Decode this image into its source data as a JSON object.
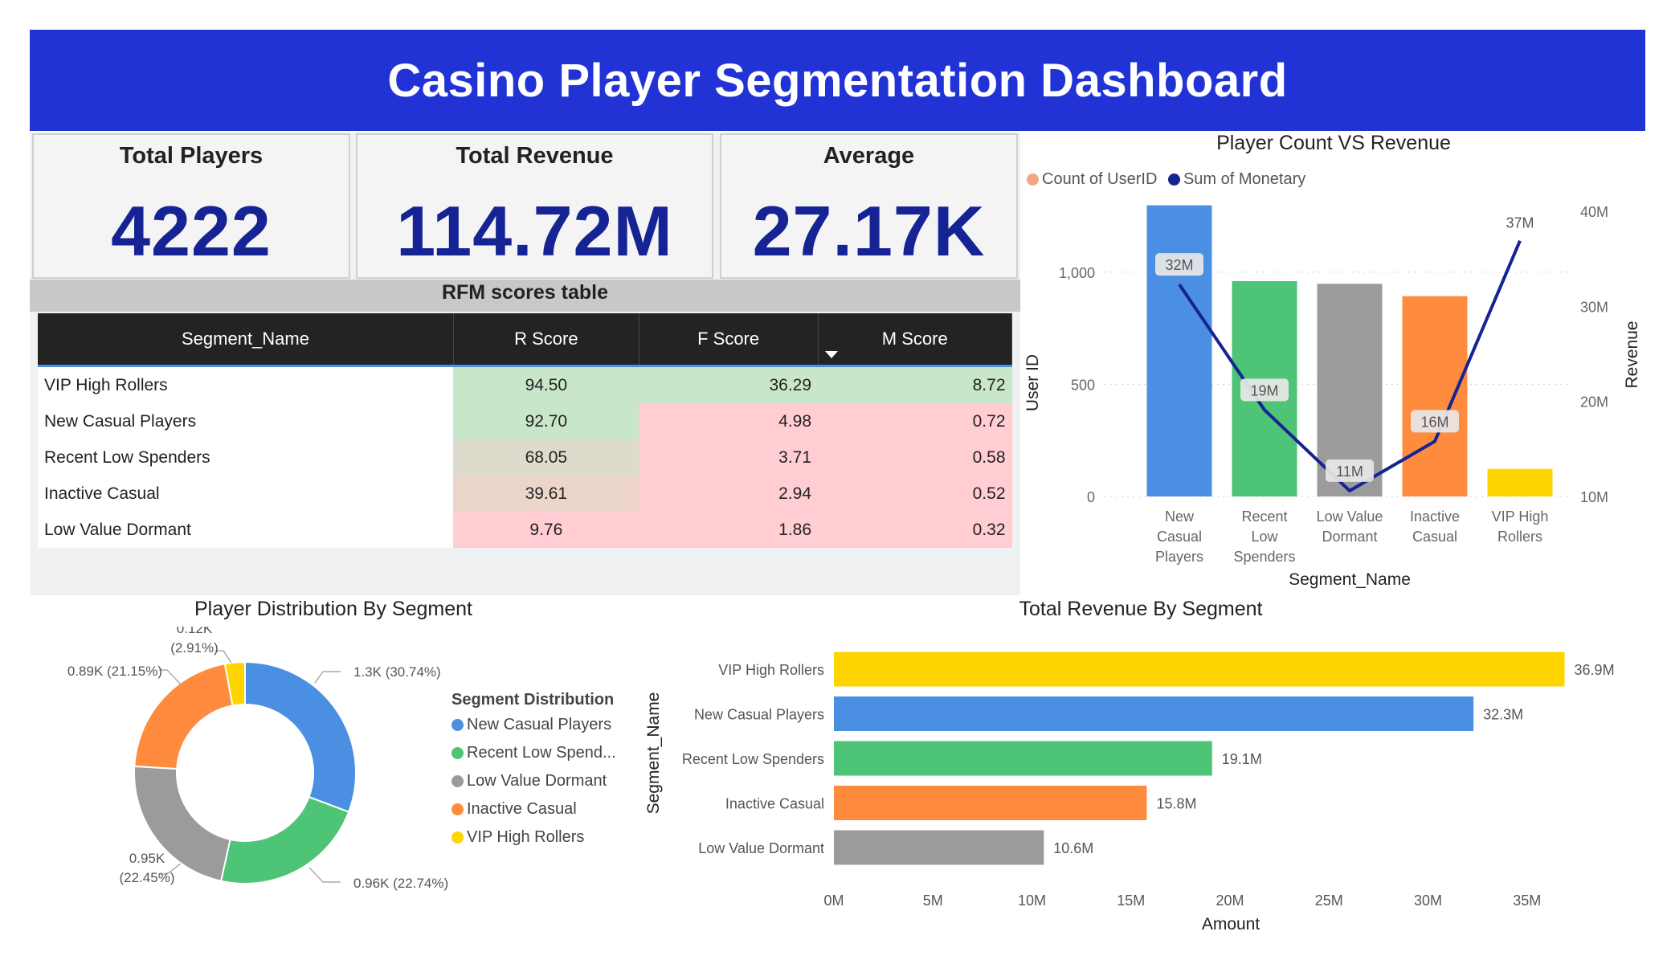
{
  "header": {
    "title": "Casino Player Segmentation Dashboard"
  },
  "kpis": {
    "total_players": {
      "label": "Total Players",
      "value": "4222"
    },
    "total_revenue": {
      "label": "Total Revenue",
      "value": "114.72M"
    },
    "average": {
      "label": "Average",
      "value": "27.17K"
    }
  },
  "rfm_table": {
    "title": "RFM scores table",
    "columns": [
      "Segment_Name",
      "R Score",
      "F Score",
      "M Score"
    ],
    "sorted_column": "M Score",
    "rows": [
      {
        "name": "VIP High Rollers",
        "r": "94.50",
        "f": "36.29",
        "m": "8.72",
        "colors": [
          "#c8e6c9",
          "#c8e6c9",
          "#c8e6c9"
        ]
      },
      {
        "name": "New Casual Players",
        "r": "92.70",
        "f": "4.98",
        "m": "0.72",
        "colors": [
          "#c8e6c9",
          "#ffcdd2",
          "#ffcdd2"
        ]
      },
      {
        "name": "Recent Low Spenders",
        "r": "68.05",
        "f": "3.71",
        "m": "0.58",
        "colors": [
          "#dddccc",
          "#ffcdd2",
          "#ffcdd2"
        ]
      },
      {
        "name": "Inactive Casual",
        "r": "39.61",
        "f": "2.94",
        "m": "0.52",
        "colors": [
          "#ecd6cc",
          "#ffcdd2",
          "#ffcdd2"
        ]
      },
      {
        "name": "Low Value Dormant",
        "r": "9.76",
        "f": "1.86",
        "m": "0.32",
        "colors": [
          "#ffcdd2",
          "#ffcdd2",
          "#ffcdd2"
        ]
      }
    ]
  },
  "chart_data": [
    {
      "type": "bar",
      "title": "Player Count VS Revenue",
      "xlabel": "Segment_Name",
      "ylabel": "User ID",
      "y2label": "Revenue",
      "legend": [
        "Count of UserID",
        "Sum of Monetary"
      ],
      "legend_colors": [
        "#f4a582",
        "#152394"
      ],
      "legend_position": "top-left",
      "categories": [
        "New Casual Players",
        "Recent Low Spenders",
        "Low Value Dormant",
        "Inactive Casual",
        "VIP High Rollers"
      ],
      "category_lines": [
        [
          "New",
          "Casual",
          "Players"
        ],
        [
          "Recent",
          "Low",
          "Spenders"
        ],
        [
          "Low Value",
          "Dormant"
        ],
        [
          "Inactive",
          "Casual"
        ],
        [
          "VIP High",
          "Rollers"
        ]
      ],
      "series": [
        {
          "name": "Count of UserID",
          "kind": "bar",
          "axis": "left",
          "values": [
            1298,
            960,
            948,
            893,
            123
          ],
          "colors": [
            "#4a8fe2",
            "#4ec476",
            "#9b9b9b",
            "#ff8c3e",
            "#ffd500"
          ]
        },
        {
          "name": "Sum of Monetary",
          "kind": "line",
          "axis": "right",
          "values": [
            32.3,
            19.1,
            10.6,
            15.8,
            36.9
          ],
          "labels": [
            "32M",
            "19M",
            "11M",
            "16M",
            "37M"
          ],
          "color": "#152394"
        }
      ],
      "ylim": [
        0,
        1300
      ],
      "yticks": [
        0,
        500,
        1000
      ],
      "ytick_labels": [
        "0",
        "500",
        "1,000"
      ],
      "y2lim": [
        10,
        40
      ],
      "y2ticks": [
        10,
        20,
        30,
        40
      ],
      "y2tick_labels": [
        "10M",
        "20M",
        "30M",
        "40M"
      ],
      "grid": true
    },
    {
      "type": "pie",
      "title": "Player Distribution By Segment",
      "legend_title": "Segment Distribution",
      "legend_position": "right",
      "legend_labels": [
        "New Casual Players",
        "Recent Low Spend...",
        "Low Value Dormant",
        "Inactive Casual",
        "VIP High Rollers"
      ],
      "categories": [
        "New Casual Players",
        "Recent Low Spenders",
        "Low Value Dormant",
        "Inactive Casual",
        "VIP High Rollers"
      ],
      "values": [
        1298,
        960,
        948,
        893,
        123
      ],
      "percent_labels": [
        "1.3K (30.74%)",
        "0.96K (22.74%)",
        "0.95K (22.45%)",
        "0.89K (21.15%)",
        "0.12K (2.91%)"
      ],
      "colors": [
        "#4a8fe2",
        "#4ec476",
        "#9b9b9b",
        "#ff8c3e",
        "#ffd500"
      ]
    },
    {
      "type": "bar",
      "orientation": "horizontal",
      "title": "Total Revenue By Segment",
      "xlabel": "Amount",
      "ylabel": "Segment_Name",
      "categories": [
        "VIP High Rollers",
        "New Casual Players",
        "Recent Low Spenders",
        "Inactive Casual",
        "Low Value Dormant"
      ],
      "values": [
        36.9,
        32.3,
        19.1,
        15.8,
        10.6
      ],
      "value_labels": [
        "36.9M",
        "32.3M",
        "19.1M",
        "15.8M",
        "10.6M"
      ],
      "colors": [
        "#ffd500",
        "#4a8fe2",
        "#4ec476",
        "#ff8c3e",
        "#9b9b9b"
      ],
      "xlim": [
        0,
        37
      ],
      "xticks": [
        0,
        5,
        10,
        15,
        20,
        25,
        30,
        35
      ],
      "xtick_labels": [
        "0M",
        "5M",
        "10M",
        "15M",
        "20M",
        "25M",
        "30M",
        "35M"
      ]
    }
  ]
}
